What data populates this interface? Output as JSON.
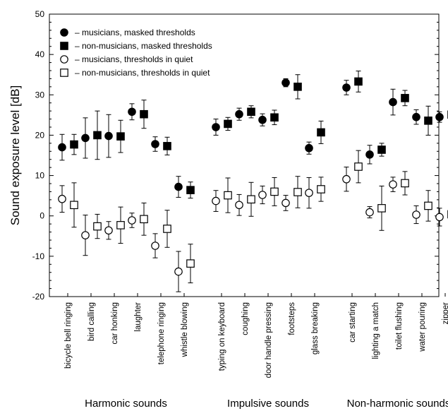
{
  "chart_data": {
    "type": "scatter",
    "ylabel": "Sound exposure level [dB]",
    "xlabel": "",
    "title": "",
    "ylim": [
      -20,
      50
    ],
    "yticks": [
      -20,
      -10,
      0,
      10,
      20,
      30,
      40,
      50
    ],
    "grid": false,
    "legend_position": "top-left",
    "categories": [
      "bicycle bell ringing",
      "bird calling",
      "car honking",
      "laughter",
      "telephone ringing",
      "whistle blowing",
      "typing on keyboard",
      "coughing",
      "door handle pressing",
      "footsteps",
      "glass breaking",
      "car starting",
      "lighting a match",
      "toilet flushing",
      "water pouring",
      "zipper"
    ],
    "groups": [
      {
        "name": "Harmonic sounds",
        "start": 0,
        "end": 5
      },
      {
        "name": "Impulsive sounds",
        "start": 6,
        "end": 10
      },
      {
        "name": "Non-harmonic sounds",
        "start": 11,
        "end": 15
      }
    ],
    "series": [
      {
        "name": "musicians, masked thresholds",
        "marker": "circle-filled",
        "values": [
          17,
          19.3,
          19.8,
          25.8,
          17.8,
          7.2,
          22,
          25.2,
          23.8,
          33,
          16.8,
          31.8,
          15.2,
          28.2,
          24.5,
          24.5
        ],
        "errors": [
          3.2,
          5,
          5.3,
          2,
          1.8,
          2.6,
          2,
          1.5,
          1.5,
          1,
          1.5,
          1.8,
          2.3,
          3.2,
          1.8,
          1.3
        ]
      },
      {
        "name": "non-musicians, masked thresholds",
        "marker": "square-filled",
        "values": [
          17.7,
          20,
          19.7,
          25.2,
          17.3,
          6.4,
          22.8,
          25.8,
          24.4,
          32,
          20.7,
          33.3,
          16.4,
          29.2,
          23.6,
          25.1
        ],
        "errors": [
          2.5,
          6,
          4,
          3.5,
          2.2,
          2,
          1.6,
          1.5,
          1.8,
          3,
          2.8,
          2.6,
          1.6,
          1.9,
          3.6,
          1.9
        ]
      },
      {
        "name": "musicians, thresholds in quiet",
        "marker": "circle-open",
        "values": [
          4.2,
          -4.8,
          -3.6,
          -1.1,
          -7.4,
          -13.8,
          3.7,
          2.7,
          5.2,
          3.2,
          5.7,
          9.1,
          0.9,
          7.8,
          0.3,
          -0.3
        ],
        "errors": [
          3.3,
          5,
          2.2,
          1.8,
          3,
          5,
          2.6,
          2.6,
          2.2,
          1.9,
          3.8,
          3,
          1.4,
          1.8,
          2.2,
          2.2
        ]
      },
      {
        "name": "non-musicians, thresholds in quiet",
        "marker": "square-open",
        "values": [
          2.7,
          -2.6,
          -2.3,
          -0.8,
          -3.2,
          -11.8,
          5.1,
          4.1,
          6,
          5.9,
          6.6,
          12.2,
          1.9,
          8.1,
          2.5,
          0.4
        ],
        "errors": [
          5.5,
          3,
          4.5,
          4,
          4.6,
          4.8,
          4.3,
          4.2,
          3.5,
          3.9,
          3,
          4,
          5.5,
          2.9,
          3.8,
          5.2
        ]
      }
    ]
  }
}
